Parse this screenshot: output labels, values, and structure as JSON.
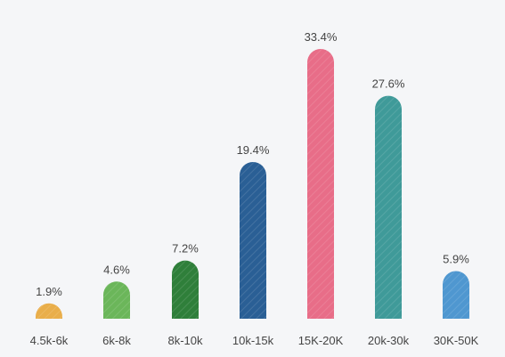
{
  "chart_data": {
    "type": "bar",
    "title": "",
    "xlabel": "",
    "ylabel": "",
    "categories": [
      "4.5k-6k",
      "6k-8k",
      "8k-10k",
      "10k-15k",
      "15K-20K",
      "20k-30k",
      "30K-50K"
    ],
    "values": [
      1.9,
      4.6,
      7.2,
      19.4,
      33.4,
      27.6,
      5.9
    ],
    "value_labels": [
      "1.9%",
      "4.6%",
      "7.2%",
      "19.4%",
      "33.4%",
      "27.6%",
      "5.9%"
    ],
    "colors": [
      "#e9ae4a",
      "#6bb65a",
      "#2f7f3a",
      "#2a5f95",
      "#e86d88",
      "#3f9a99",
      "#4f97d0"
    ],
    "ylim": [
      0,
      33.4
    ],
    "grid": false,
    "legend": "none",
    "bar_style": "rounded-top with diagonal hatch texture"
  }
}
